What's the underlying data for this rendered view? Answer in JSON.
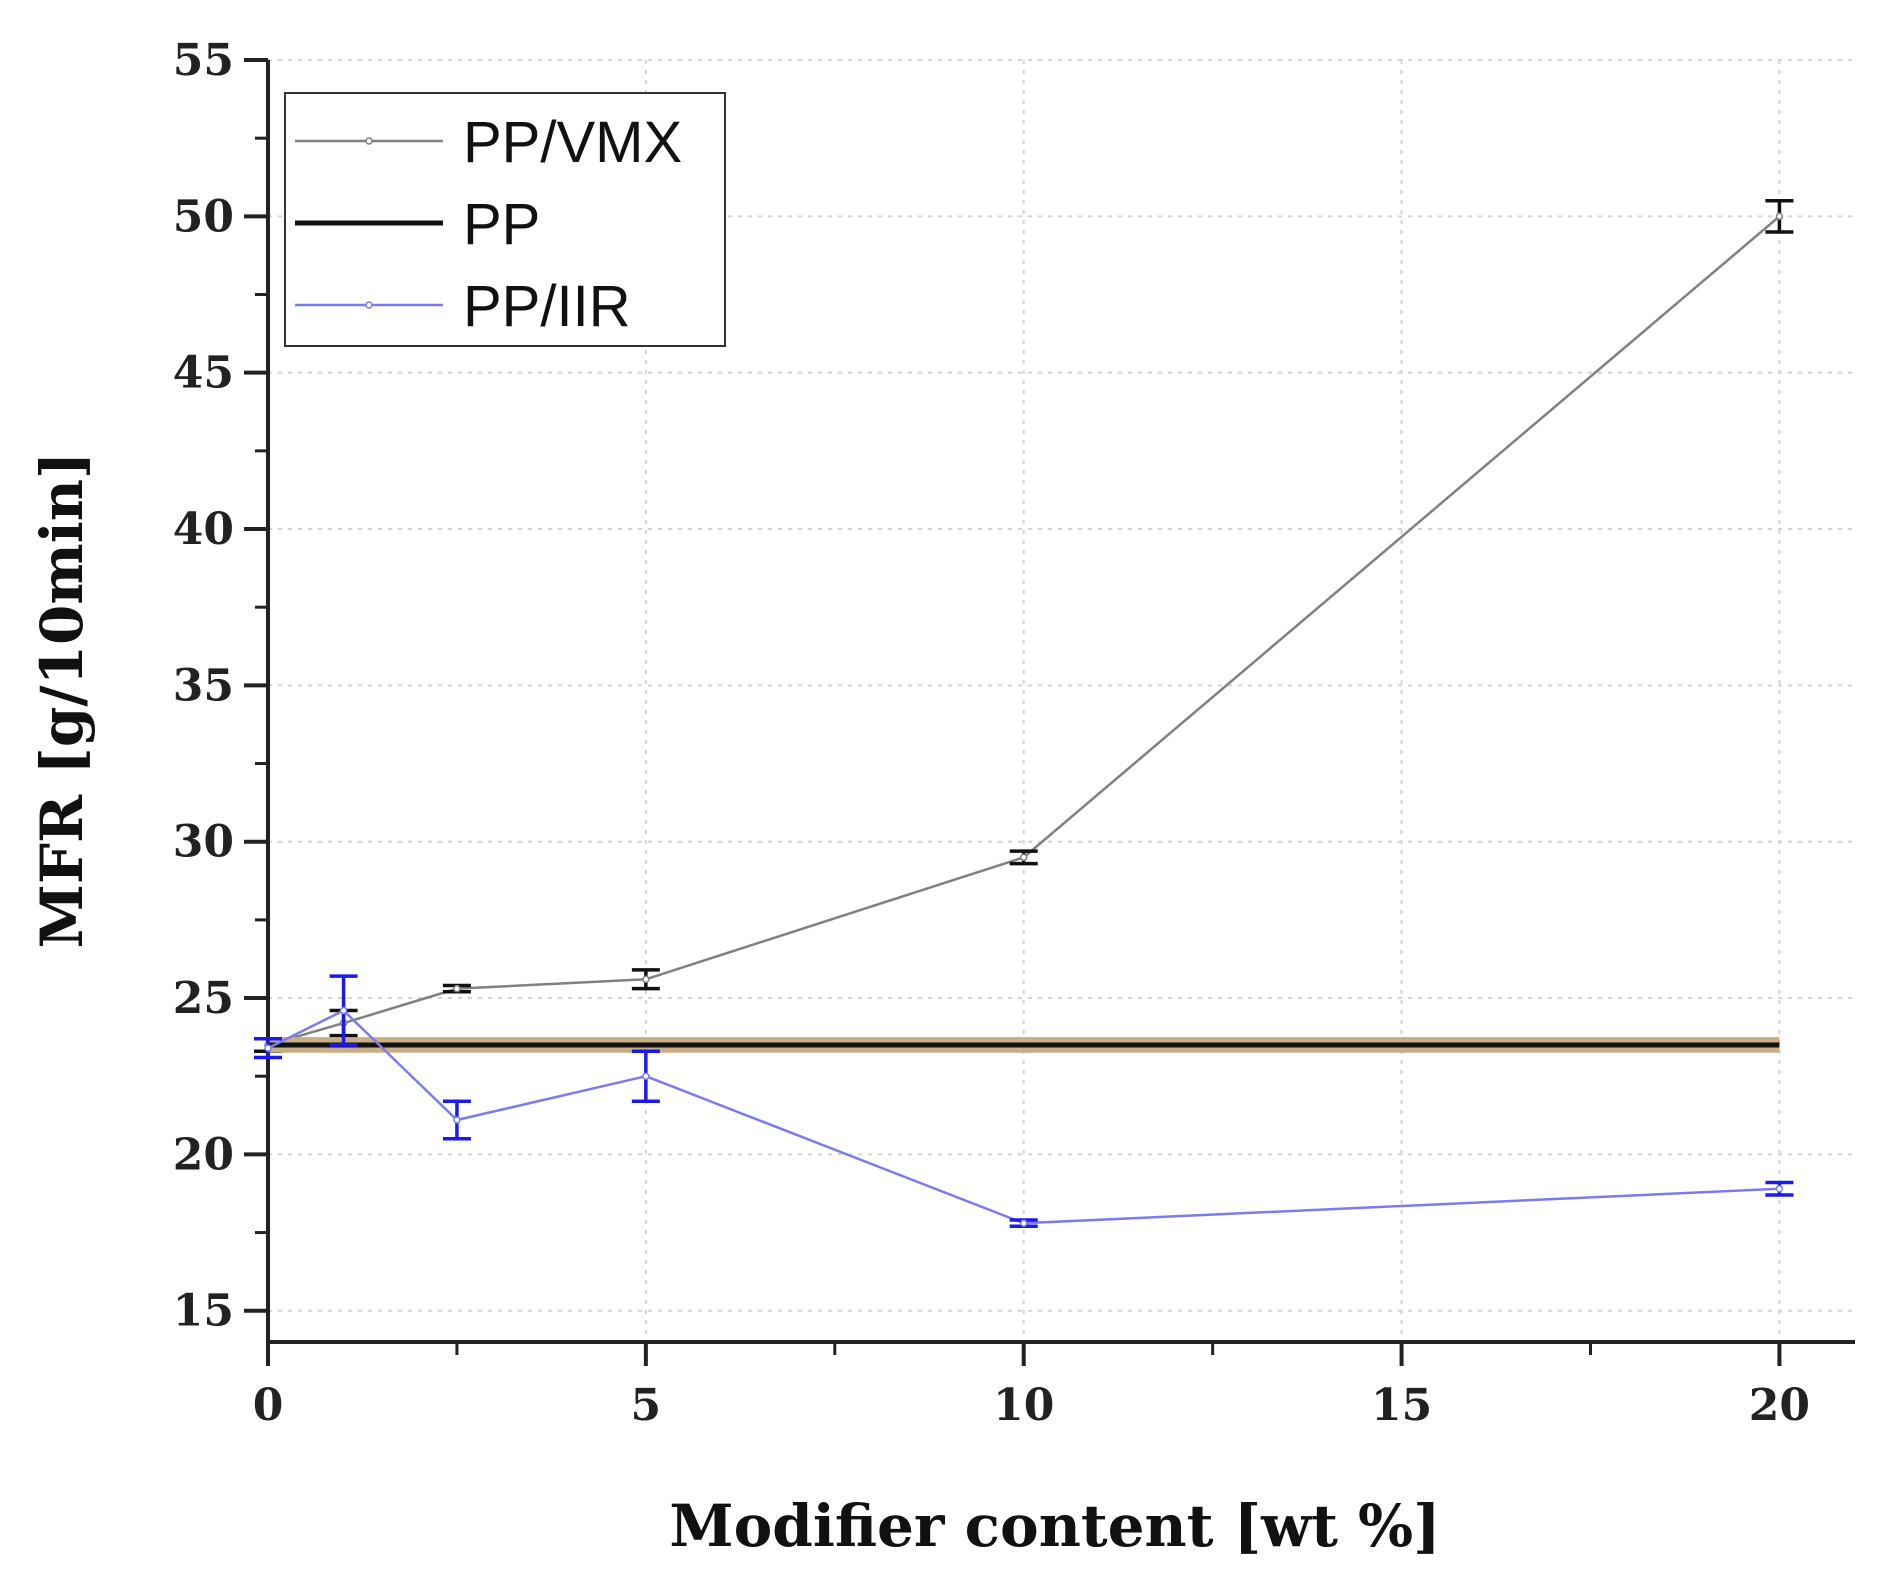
{
  "chart_data": {
    "type": "line",
    "title": "",
    "xlabel": "Modifier content [wt %]",
    "ylabel": "MFR [g/10min]",
    "xlim": [
      0,
      21
    ],
    "ylim": [
      14,
      55
    ],
    "xticks": [
      0,
      5,
      10,
      15,
      20
    ],
    "yticks": [
      15,
      20,
      25,
      30,
      35,
      40,
      45,
      50,
      55
    ],
    "grid": true,
    "legend_position": "top-left",
    "series": [
      {
        "name": "PP/VMX",
        "color": "#808080",
        "error_color": "#111111",
        "x": [
          0,
          1,
          2.5,
          5,
          10,
          20
        ],
        "y": [
          23.5,
          24.2,
          25.3,
          25.6,
          29.5,
          50.0
        ],
        "err": [
          0.2,
          0.4,
          0.1,
          0.3,
          0.2,
          0.5
        ]
      },
      {
        "name": "PP",
        "color": "#111111",
        "band_color": "#c8ad85",
        "type": "hline",
        "y": 23.5,
        "band": [
          23.25,
          23.75
        ],
        "x_range": [
          0,
          20
        ]
      },
      {
        "name": "PP/IIR",
        "color": "#7b7bf0",
        "error_color": "#1a1aee",
        "x": [
          0,
          1,
          2.5,
          5,
          10,
          20
        ],
        "y": [
          23.4,
          24.6,
          21.1,
          22.5,
          17.8,
          18.9
        ],
        "err": [
          0.3,
          1.1,
          0.6,
          0.8,
          0.1,
          0.2
        ]
      }
    ]
  }
}
